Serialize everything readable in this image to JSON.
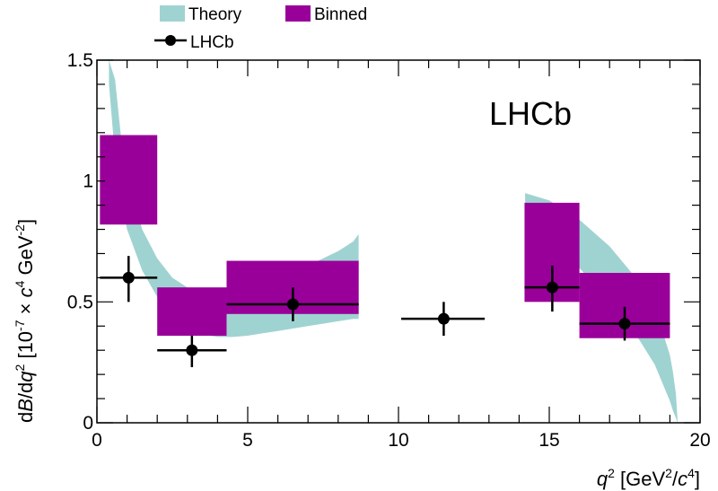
{
  "chart_data": {
    "type": "scatter",
    "watermark": "LHCb",
    "xlabel": {
      "main": "q",
      "sup1": "2",
      "open": " [GeV",
      "sup2": "2",
      "slash": "/",
      "c": "c",
      "sup3": "4",
      "close": "]"
    },
    "ylabel": {
      "d1": "d",
      "B": "B",
      "slash": "/d",
      "q": "q",
      "sup1": "2",
      "mid": " [10",
      "sup2": "-7",
      "times": " × ",
      "c": "c",
      "sup3": "4",
      "gev": " GeV",
      "sup4": "-2",
      "close": "]"
    },
    "xlim": [
      0,
      20
    ],
    "ylim": [
      0,
      1.5
    ],
    "x_ticks": [
      0,
      5,
      10,
      15,
      20
    ],
    "y_ticks": [
      0,
      0.5,
      1,
      1.5
    ],
    "x_tick_labels": [
      "0",
      "5",
      "10",
      "15",
      "20"
    ],
    "y_tick_labels": [
      "0",
      "0.5",
      "1",
      "1.5"
    ],
    "legend": {
      "placement": "top-left",
      "items": [
        {
          "label": "Theory",
          "color": "#9fd3d1"
        },
        {
          "label": "Binned",
          "color": "#990099"
        },
        {
          "label": "LHCb",
          "color": "#000000"
        }
      ]
    },
    "series": [
      {
        "name": "Theory",
        "kind": "band",
        "color": "#9fd3d1",
        "segments": [
          {
            "x": [
              0.4,
              0.6,
              0.8,
              1.0,
              1.5,
              2.0,
              2.5,
              3.0,
              3.5,
              4.0,
              4.5,
              5.0,
              5.5,
              6.0,
              6.5,
              7.0,
              7.5,
              8.0,
              8.5,
              8.68
            ],
            "low": [
              1.4,
              1.1,
              0.92,
              0.8,
              0.63,
              0.52,
              0.44,
              0.39,
              0.365,
              0.355,
              0.355,
              0.36,
              0.37,
              0.38,
              0.39,
              0.4,
              0.41,
              0.42,
              0.43,
              0.43
            ],
            "high": [
              1.5,
              1.42,
              1.18,
              1.03,
              0.8,
              0.68,
              0.6,
              0.56,
              0.54,
              0.535,
              0.54,
              0.55,
              0.57,
              0.59,
              0.62,
              0.65,
              0.68,
              0.71,
              0.75,
              0.78
            ]
          },
          {
            "x": [
              14.2,
              15.0,
              16.0,
              17.0,
              18.0,
              18.5,
              18.8,
              19.0,
              19.1,
              19.2,
              19.25
            ],
            "low": [
              0.82,
              0.76,
              0.64,
              0.5,
              0.34,
              0.24,
              0.15,
              0.09,
              0.05,
              0.02,
              0.0
            ],
            "high": [
              0.95,
              0.92,
              0.84,
              0.73,
              0.58,
              0.46,
              0.36,
              0.28,
              0.21,
              0.12,
              0.02
            ]
          }
        ]
      },
      {
        "name": "Binned",
        "kind": "boxes",
        "color": "#990099",
        "boxes": [
          {
            "x0": 0.1,
            "x1": 2.0,
            "ylo": 0.82,
            "yhi": 1.19
          },
          {
            "x0": 2.0,
            "x1": 4.3,
            "ylo": 0.36,
            "yhi": 0.56
          },
          {
            "x0": 4.3,
            "x1": 8.68,
            "ylo": 0.45,
            "yhi": 0.67
          },
          {
            "x0": 14.18,
            "x1": 16.0,
            "ylo": 0.5,
            "yhi": 0.91
          },
          {
            "x0": 16.0,
            "x1": 19.0,
            "ylo": 0.35,
            "yhi": 0.62
          }
        ]
      },
      {
        "name": "LHCb",
        "kind": "points",
        "color": "#000000",
        "points": [
          {
            "x": 1.05,
            "xlo": 0.1,
            "xhi": 2.0,
            "y": 0.6,
            "ylo": 0.5,
            "yhi": 0.69
          },
          {
            "x": 3.15,
            "xlo": 2.0,
            "xhi": 4.3,
            "y": 0.3,
            "ylo": 0.23,
            "yhi": 0.36
          },
          {
            "x": 6.5,
            "xlo": 4.3,
            "xhi": 8.68,
            "y": 0.49,
            "ylo": 0.42,
            "yhi": 0.56
          },
          {
            "x": 11.5,
            "xlo": 10.09,
            "xhi": 12.86,
            "y": 0.43,
            "ylo": 0.36,
            "yhi": 0.5
          },
          {
            "x": 15.1,
            "xlo": 14.18,
            "xhi": 16.0,
            "y": 0.56,
            "ylo": 0.46,
            "yhi": 0.65
          },
          {
            "x": 17.5,
            "xlo": 16.0,
            "xhi": 19.0,
            "y": 0.41,
            "ylo": 0.34,
            "yhi": 0.48
          }
        ]
      }
    ]
  }
}
